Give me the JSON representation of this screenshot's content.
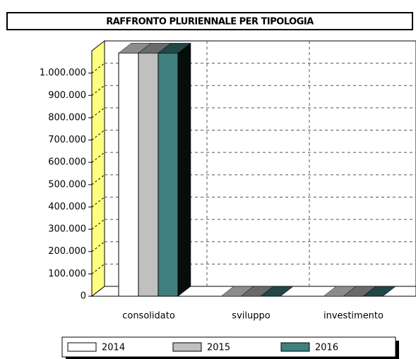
{
  "chart_data": {
    "type": "bar3d",
    "title": "RAFFRONTO PLURIENNALE PER TIPOLOGIA",
    "categories": [
      "consolidato",
      "sviluppo",
      "investimento"
    ],
    "series": [
      {
        "name": "2014",
        "color": "#ffffff",
        "values": [
          1090000,
          0,
          0
        ]
      },
      {
        "name": "2015",
        "color": "#c0c0c0",
        "values": [
          1090000,
          0,
          0
        ]
      },
      {
        "name": "2016",
        "color": "#3f7f7f",
        "values": [
          1090000,
          0,
          0
        ]
      }
    ],
    "ylim": [
      0,
      1100000
    ],
    "yticks": [
      0,
      {
        "value": 100000,
        "label": "100.000"
      },
      {
        "value": 200000,
        "label": "200.000"
      },
      {
        "value": 300000,
        "label": "300.000"
      },
      {
        "value": 400000,
        "label": "400.000"
      },
      {
        "value": 500000,
        "label": "500.000"
      },
      {
        "value": 600000,
        "label": "600.000"
      },
      {
        "value": 700000,
        "label": "700.000"
      },
      {
        "value": 800000,
        "label": "800.000"
      },
      {
        "value": 900000,
        "label": "900.000"
      },
      {
        "value": 1000000,
        "label": "1.000.000"
      }
    ],
    "grid": true,
    "legend": "bottom",
    "wall_color": "#ffff80"
  }
}
